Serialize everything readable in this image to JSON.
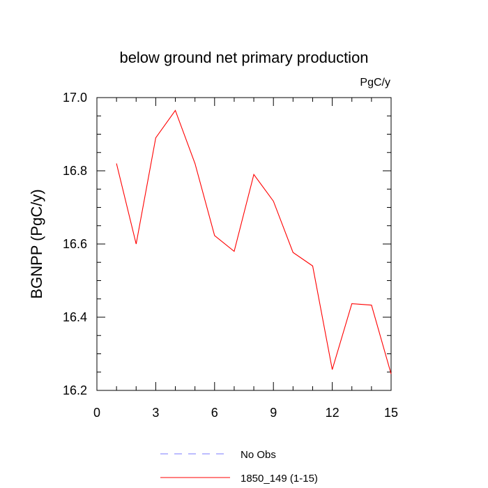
{
  "chart_data": {
    "type": "line",
    "title": "below ground net primary production",
    "units": "PgC/y",
    "xlabel": "",
    "ylabel": "BGNPP  (PgC/y)",
    "xlim": [
      0,
      15
    ],
    "ylim": [
      16.2,
      17.0
    ],
    "x_ticks": [
      0,
      3,
      6,
      9,
      12,
      15
    ],
    "x_tick_labels": [
      "0",
      "3",
      "6",
      "9",
      "12",
      "15"
    ],
    "y_ticks": [
      16.2,
      16.4,
      16.6,
      16.8,
      17.0
    ],
    "y_tick_labels": [
      "16.2",
      "16.4",
      "16.6",
      "16.8",
      "17.0"
    ],
    "grid": false,
    "legend_position": "bottom",
    "series": [
      {
        "name": "1850_149 (1-15)",
        "color": "#ff0000",
        "style": "solid",
        "x": [
          1,
          2,
          3,
          4,
          5,
          6,
          7,
          8,
          9,
          10,
          11,
          12,
          13,
          14,
          15
        ],
        "y": [
          16.82,
          16.6,
          16.89,
          16.965,
          16.82,
          16.623,
          16.58,
          16.79,
          16.717,
          16.577,
          16.54,
          16.257,
          16.437,
          16.433,
          16.245
        ]
      }
    ],
    "legend": [
      {
        "label": "No Obs",
        "color": "#7b7bff",
        "style": "dashed"
      },
      {
        "label": "1850_149 (1-15)",
        "color": "#ff0000",
        "style": "solid"
      }
    ]
  }
}
